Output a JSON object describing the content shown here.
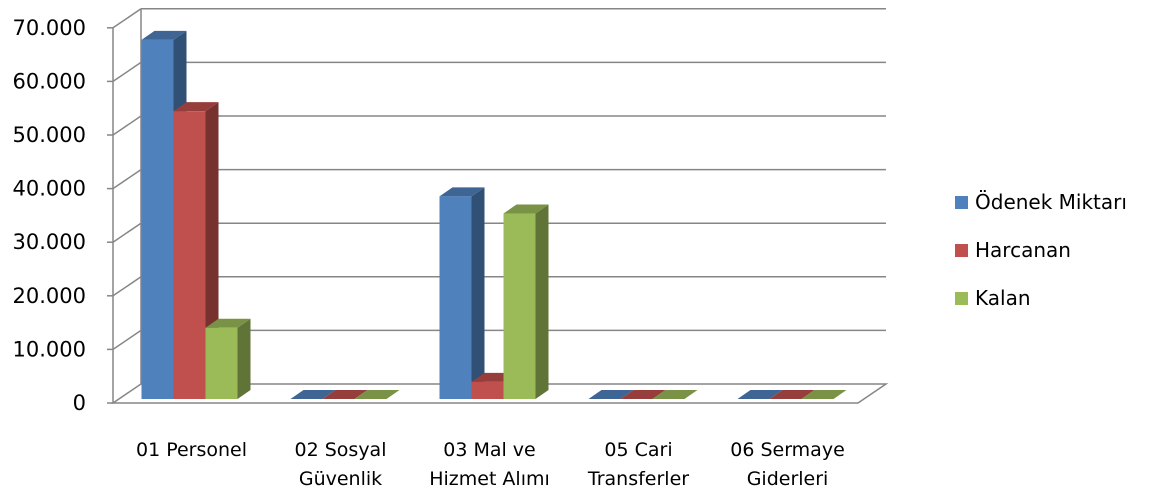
{
  "chart_data": {
    "type": "bar",
    "title": "",
    "xlabel": "",
    "ylabel": "",
    "ylim": [
      0,
      70000
    ],
    "yticks": [
      "0",
      "10.000",
      "20.000",
      "30.000",
      "40.000",
      "50.000",
      "60.000",
      "70.000"
    ],
    "ytick_values": [
      0,
      10000,
      20000,
      30000,
      40000,
      50000,
      60000,
      70000
    ],
    "grid": true,
    "three_d": true,
    "legend_position": "right",
    "categories": [
      [
        "01 Personel"
      ],
      [
        "02 Sosyal",
        "Güvenlik"
      ],
      [
        "03 Mal ve",
        "Hizmet Alımı"
      ],
      [
        "05 Cari",
        "Transferler"
      ],
      [
        "06 Sermaye",
        "Giderleri"
      ]
    ],
    "series": [
      {
        "name": "Ödenek Miktarı",
        "color": "#4F81BD",
        "values": [
          67000,
          0,
          37800,
          0,
          0
        ]
      },
      {
        "name": "Harcanan",
        "color": "#C0504D",
        "values": [
          53700,
          0,
          3200,
          0,
          0
        ]
      },
      {
        "name": "Kalan",
        "color": "#9BBB59",
        "values": [
          13300,
          0,
          34600,
          0,
          0
        ]
      }
    ]
  }
}
